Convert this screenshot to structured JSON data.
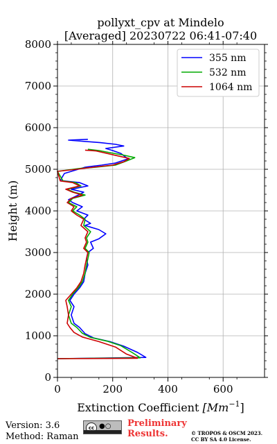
{
  "chart_data": {
    "type": "line",
    "title": "pollyxt_cpv at Mindelo",
    "subtitle": "[Averaged] 20230722 06:41-07:40",
    "xlabel": "Extinction Coefficient",
    "xlabel_unit": "[Mm",
    "xlabel_unit_exp": "−1",
    "xlabel_close": "]",
    "ylabel": "Height (m)",
    "xlim": [
      0,
      750
    ],
    "ylim": [
      0,
      8000
    ],
    "xticks": [
      0,
      200,
      400,
      600
    ],
    "yticks": [
      0,
      1000,
      2000,
      3000,
      4000,
      5000,
      6000,
      7000,
      8000
    ],
    "grid": true,
    "legend_position": "top-right",
    "series": [
      {
        "name": "355 nm",
        "color": "#0000ff",
        "points": [
          [
            0,
            450
          ],
          [
            320,
            480
          ],
          [
            290,
            600
          ],
          [
            240,
            750
          ],
          [
            190,
            860
          ],
          [
            130,
            950
          ],
          [
            100,
            1050
          ],
          [
            80,
            1200
          ],
          [
            60,
            1300
          ],
          [
            50,
            1500
          ],
          [
            60,
            1700
          ],
          [
            45,
            1850
          ],
          [
            60,
            2000
          ],
          [
            80,
            2150
          ],
          [
            95,
            2300
          ],
          [
            100,
            2500
          ],
          [
            110,
            2700
          ],
          [
            105,
            2850
          ],
          [
            110,
            3000
          ],
          [
            130,
            3100
          ],
          [
            120,
            3250
          ],
          [
            150,
            3330
          ],
          [
            175,
            3450
          ],
          [
            150,
            3550
          ],
          [
            100,
            3650
          ],
          [
            120,
            3700
          ],
          [
            95,
            3800
          ],
          [
            110,
            3900
          ],
          [
            70,
            4000
          ],
          [
            90,
            4100
          ],
          [
            55,
            4200
          ],
          [
            40,
            4270
          ],
          [
            75,
            4380
          ],
          [
            95,
            4450
          ],
          [
            50,
            4520
          ],
          [
            110,
            4600
          ],
          [
            80,
            4680
          ],
          [
            10,
            4730
          ],
          [
            25,
            4900
          ],
          [
            100,
            5050
          ],
          [
            160,
            5100
          ],
          [
            210,
            5150
          ],
          [
            255,
            5250
          ],
          [
            230,
            5380
          ],
          [
            200,
            5450
          ],
          [
            175,
            5500
          ],
          [
            240,
            5560
          ],
          [
            210,
            5600
          ],
          [
            155,
            5640
          ],
          [
            40,
            5700
          ],
          [
            110,
            5720
          ]
        ]
      },
      {
        "name": "532 nm",
        "color": "#00aa00",
        "points": [
          [
            0,
            450
          ],
          [
            300,
            470
          ],
          [
            270,
            600
          ],
          [
            230,
            760
          ],
          [
            180,
            870
          ],
          [
            120,
            960
          ],
          [
            90,
            1060
          ],
          [
            70,
            1200
          ],
          [
            50,
            1300
          ],
          [
            40,
            1500
          ],
          [
            50,
            1700
          ],
          [
            40,
            1850
          ],
          [
            55,
            2000
          ],
          [
            75,
            2150
          ],
          [
            90,
            2300
          ],
          [
            100,
            2500
          ],
          [
            105,
            2700
          ],
          [
            110,
            2850
          ],
          [
            115,
            3000
          ],
          [
            100,
            3100
          ],
          [
            110,
            3250
          ],
          [
            105,
            3350
          ],
          [
            120,
            3500
          ],
          [
            95,
            3650
          ],
          [
            100,
            3800
          ],
          [
            80,
            3900
          ],
          [
            55,
            4000
          ],
          [
            70,
            4100
          ],
          [
            40,
            4200
          ],
          [
            55,
            4300
          ],
          [
            100,
            4380
          ],
          [
            60,
            4450
          ],
          [
            35,
            4520
          ],
          [
            85,
            4600
          ],
          [
            65,
            4680
          ],
          [
            20,
            4720
          ],
          [
            0,
            4950
          ],
          [
            80,
            5020
          ],
          [
            140,
            5050
          ],
          [
            210,
            5100
          ],
          [
            250,
            5200
          ],
          [
            280,
            5280
          ],
          [
            240,
            5340
          ],
          [
            190,
            5400
          ],
          [
            150,
            5450
          ],
          [
            110,
            5480
          ]
        ]
      },
      {
        "name": "1064 nm",
        "color": "#cc0000",
        "points": [
          [
            0,
            450
          ],
          [
            290,
            460
          ],
          [
            250,
            560
          ],
          [
            210,
            730
          ],
          [
            150,
            860
          ],
          [
            90,
            970
          ],
          [
            60,
            1080
          ],
          [
            45,
            1200
          ],
          [
            35,
            1300
          ],
          [
            40,
            1500
          ],
          [
            35,
            1700
          ],
          [
            30,
            1850
          ],
          [
            50,
            2000
          ],
          [
            70,
            2150
          ],
          [
            85,
            2300
          ],
          [
            95,
            2500
          ],
          [
            100,
            2700
          ],
          [
            105,
            2850
          ],
          [
            110,
            3000
          ],
          [
            95,
            3100
          ],
          [
            105,
            3250
          ],
          [
            100,
            3350
          ],
          [
            110,
            3500
          ],
          [
            85,
            3650
          ],
          [
            95,
            3800
          ],
          [
            70,
            3900
          ],
          [
            50,
            4000
          ],
          [
            60,
            4100
          ],
          [
            35,
            4200
          ],
          [
            50,
            4300
          ],
          [
            90,
            4380
          ],
          [
            55,
            4450
          ],
          [
            30,
            4520
          ],
          [
            80,
            4600
          ],
          [
            55,
            4680
          ],
          [
            10,
            4720
          ],
          [
            0,
            4950
          ],
          [
            70,
            5000
          ],
          [
            130,
            5050
          ],
          [
            200,
            5100
          ],
          [
            240,
            5180
          ],
          [
            260,
            5260
          ],
          [
            220,
            5320
          ],
          [
            180,
            5380
          ],
          [
            140,
            5440
          ],
          [
            100,
            5460
          ]
        ]
      }
    ]
  },
  "footer": {
    "version": "Version: 3.6",
    "method": "Method: Raman",
    "preliminary_line1": "Preliminary",
    "preliminary_line2": "Results.",
    "copyright_line1": "© TROPOS & OSCM 2023.",
    "copyright_line2": "CC BY SA 4.0 License.",
    "cc_text": "cc"
  }
}
